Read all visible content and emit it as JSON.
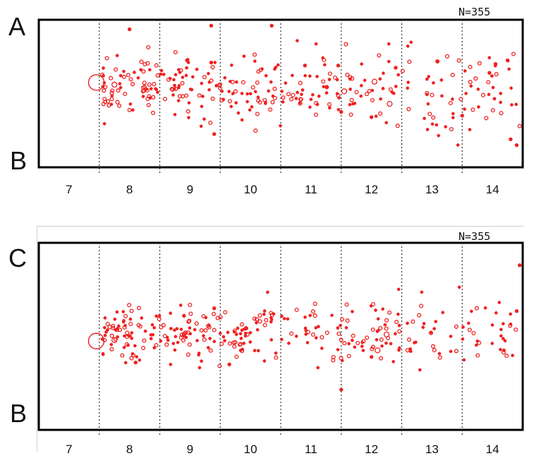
{
  "panels": [
    {
      "id": "top",
      "letter_top": "A",
      "letter_bottom": "B",
      "n_label": "N=355"
    },
    {
      "id": "bottom",
      "letter_top": "C",
      "letter_bottom": "B",
      "n_label": "N=355"
    }
  ],
  "colors": {
    "points": "#ee2222",
    "axes": "#000000",
    "dividers": "#333333"
  },
  "chart_data": [
    {
      "type": "scatter",
      "x_ticks": [
        "7",
        "8",
        "9",
        "10",
        "11",
        "12",
        "13",
        "14"
      ],
      "xlim": [
        6.5,
        14.5
      ],
      "y_ticks": [],
      "ylim": [
        -1,
        1
      ],
      "grid": "vertical dotted dividers at x = 7.5 ... 13.5",
      "annotations": [
        "N=355"
      ],
      "large_marker": {
        "x": 7.45,
        "y": 0.15
      },
      "open_markers": [
        {
          "x": 7.75,
          "y": 0.12
        },
        {
          "x": 11.55,
          "y": 0.03
        },
        {
          "x": 12.05,
          "y": 0.16
        },
        {
          "x": 12.3,
          "y": -0.14
        }
      ],
      "values": [
        {
          "x": 8.0,
          "y": 0.87
        },
        {
          "x": 9.35,
          "y": 0.92
        },
        {
          "x": 10.35,
          "y": 0.92
        },
        {
          "x": 8.95,
          "y": 0.45
        },
        {
          "x": 9.35,
          "y": 0.42
        },
        {
          "x": 10.9,
          "y": 0.38
        },
        {
          "x": 11.45,
          "y": 0.38
        },
        {
          "x": 12.4,
          "y": 0.35
        },
        {
          "x": 14.05,
          "y": 0.4
        },
        {
          "x": 14.25,
          "y": 0.45
        },
        {
          "x": 13.95,
          "y": 0.28
        },
        {
          "x": 9.4,
          "y": -0.55
        },
        {
          "x": 14.3,
          "y": -0.62
        },
        {
          "x": 14.4,
          "y": -0.7
        },
        {
          "x": 12.0,
          "y": -0.32
        },
        {
          "x": 13.5,
          "y": -0.3
        },
        {
          "x": 11.5,
          "y": -0.25
        }
      ]
    },
    {
      "type": "scatter",
      "x_ticks": [
        "7",
        "8",
        "9",
        "10",
        "11",
        "12",
        "13",
        "14"
      ],
      "xlim": [
        6.5,
        14.5
      ],
      "y_ticks": [],
      "ylim": [
        -1,
        1
      ],
      "grid": "vertical dotted dividers at x = 7.5 ... 13.5",
      "annotations": [
        "N=355"
      ],
      "large_marker": {
        "x": 7.45,
        "y": -0.05
      },
      "open_markers": [
        {
          "x": 7.75,
          "y": -0.04
        },
        {
          "x": 12.1,
          "y": -0.15
        },
        {
          "x": 12.25,
          "y": 0.02
        }
      ],
      "values": [
        {
          "x": 14.45,
          "y": 0.76
        },
        {
          "x": 9.4,
          "y": 0.3
        },
        {
          "x": 14.4,
          "y": 0.27
        },
        {
          "x": 11.5,
          "y": -0.57
        },
        {
          "x": 9.65,
          "y": -0.3
        },
        {
          "x": 8.1,
          "y": -0.28
        },
        {
          "x": 8.9,
          "y": 0.22
        },
        {
          "x": 12.0,
          "y": -0.22
        }
      ]
    }
  ]
}
